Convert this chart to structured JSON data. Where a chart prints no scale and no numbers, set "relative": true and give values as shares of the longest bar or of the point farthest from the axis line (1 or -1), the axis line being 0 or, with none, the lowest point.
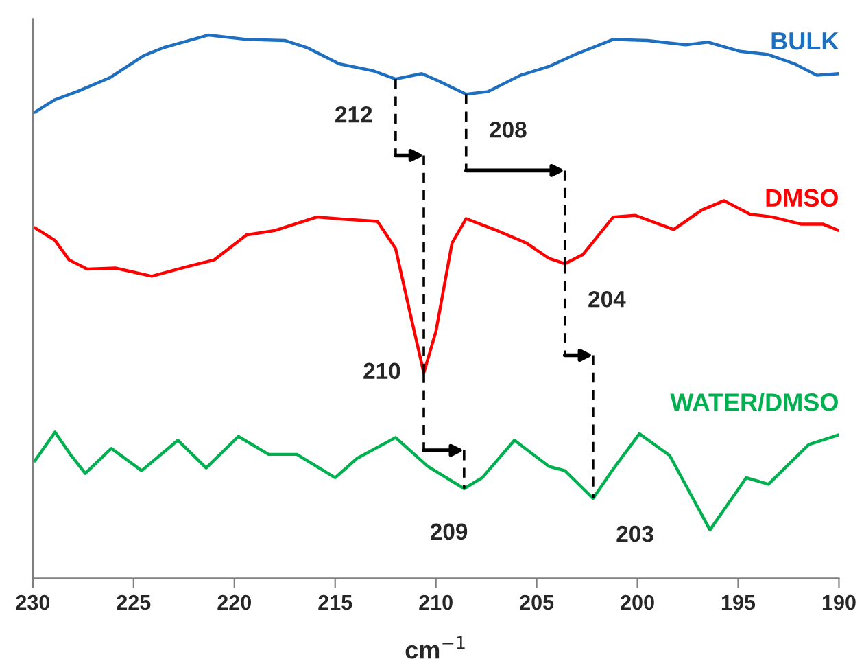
{
  "chart_data": {
    "type": "line",
    "relative": true,
    "xlabel": "cm$^{−1}$",
    "xlim": [
      230,
      190
    ],
    "xticks": [
      230,
      225,
      220,
      215,
      210,
      205,
      200,
      195,
      190
    ],
    "grid": false,
    "marker": "none",
    "line_style": "solid",
    "series": [
      {
        "name": "BULK",
        "color": "#1f6fc1",
        "x": [
          229.9,
          228.9,
          227.8,
          226.2,
          224.5,
          223.5,
          221.3,
          219.4,
          217.5,
          216.4,
          214.8,
          213.1,
          212.0,
          210.7,
          209.9,
          208.5,
          207.4,
          205.8,
          204.4,
          203.1,
          201.2,
          199.5,
          197.6,
          196.5,
          194.9,
          193.5,
          192.2,
          191.1,
          190.0
        ],
        "values": [
          0.858,
          0.881,
          0.896,
          0.921,
          0.962,
          0.977,
          1.0,
          0.992,
          0.99,
          0.977,
          0.947,
          0.934,
          0.919,
          0.929,
          0.916,
          0.891,
          0.896,
          0.926,
          0.942,
          0.964,
          0.992,
          0.99,
          0.982,
          0.987,
          0.97,
          0.964,
          0.947,
          0.926,
          0.929
        ]
      },
      {
        "name": "DMSO",
        "color": "#ff0000",
        "x": [
          229.9,
          228.9,
          228.2,
          227.3,
          225.9,
          224.1,
          222.1,
          221.0,
          219.4,
          218.0,
          215.9,
          214.2,
          212.9,
          212.0,
          211.2,
          210.6,
          210.0,
          209.2,
          208.5,
          207.1,
          205.5,
          204.4,
          203.6,
          202.7,
          201.2,
          200.1,
          198.2,
          196.8,
          195.7,
          194.4,
          193.3,
          191.9,
          190.8,
          190.0
        ],
        "values": [
          0.645,
          0.622,
          0.586,
          0.569,
          0.571,
          0.556,
          0.576,
          0.586,
          0.632,
          0.64,
          0.665,
          0.66,
          0.657,
          0.607,
          0.475,
          0.378,
          0.454,
          0.617,
          0.662,
          0.642,
          0.617,
          0.589,
          0.579,
          0.596,
          0.665,
          0.668,
          0.642,
          0.678,
          0.695,
          0.67,
          0.665,
          0.652,
          0.652,
          0.64
        ]
      },
      {
        "name": "WATER/DMSO",
        "color": "#00b050",
        "x": [
          229.9,
          228.9,
          228.1,
          227.4,
          226.1,
          224.6,
          222.8,
          221.4,
          219.8,
          218.3,
          216.9,
          215.0,
          213.9,
          212.0,
          210.4,
          208.6,
          207.7,
          206.1,
          204.4,
          203.6,
          202.2,
          201.2,
          199.9,
          198.4,
          196.4,
          194.6,
          193.5,
          191.5,
          190.0
        ],
        "values": [
          0.216,
          0.269,
          0.226,
          0.193,
          0.239,
          0.198,
          0.254,
          0.203,
          0.261,
          0.228,
          0.228,
          0.185,
          0.221,
          0.259,
          0.206,
          0.165,
          0.185,
          0.254,
          0.206,
          0.198,
          0.147,
          0.201,
          0.266,
          0.226,
          0.089,
          0.185,
          0.173,
          0.246,
          0.264
        ]
      }
    ],
    "annotations": [
      {
        "text": "212",
        "x": 212.0,
        "y": 0.919
      },
      {
        "text": "208",
        "x": 208.5,
        "y": 0.891
      },
      {
        "text": "210",
        "x": 210.6,
        "y": 0.378
      },
      {
        "text": "204",
        "x": 203.6,
        "y": 0.579
      },
      {
        "text": "209",
        "x": 208.6,
        "y": 0.165
      },
      {
        "text": "203",
        "x": 202.2,
        "y": 0.147
      }
    ]
  }
}
